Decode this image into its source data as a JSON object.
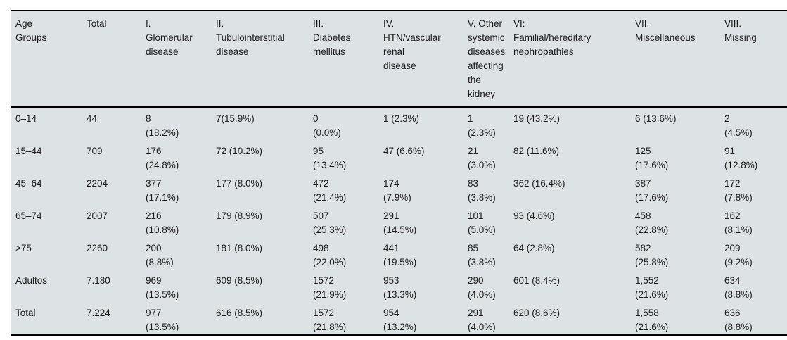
{
  "colors": {
    "table_background": "#dde2e5",
    "rule": "#000000",
    "text": "#1b1b1b"
  },
  "table": {
    "columns": [
      "Age\nGroups",
      "Total",
      "I.\nGlomerular\ndisease",
      "II.\nTubulointerstitial\ndisease",
      "III.\nDiabetes\nmellitus",
      "IV.\nHTN/vascular\nrenal\ndisease",
      "V. Other\nsystemic\ndiseases\naffecting\nthe\nkidney",
      "VI:\nFamilial/hereditary\nnephropathies",
      "VII.\nMiscellaneous",
      "VIII.\nMissing"
    ],
    "rows": [
      {
        "cells": [
          "0–14",
          "44",
          "8\n(18.2%)",
          "7(15.9%)",
          "0\n(0.0%)",
          "1 (2.3%)",
          "1\n(2.3%)",
          "19 (43.2%)",
          "6 (13.6%)",
          "2\n(4.5%)"
        ]
      },
      {
        "cells": [
          "15–44",
          "709",
          "176\n(24.8%)",
          "72 (10.2%)",
          "95\n(13.4%)",
          "47 (6.6%)",
          "21\n(3.0%)",
          "82 (11.6%)",
          "125\n(17.6%)",
          "91\n(12.8%)"
        ]
      },
      {
        "cells": [
          "45–64",
          "2204",
          "377\n(17.1%)",
          "177 (8.0%)",
          "472\n(21.4%)",
          "174\n(7.9%)",
          "83\n(3.8%)",
          "362 (16.4%)",
          "387\n(17.6%)",
          "172\n(7.8%)"
        ]
      },
      {
        "cells": [
          "65–74",
          "2007",
          "216\n(10.8%)",
          "179 (8.9%)",
          "507\n(25.3%)",
          "291\n(14.5%)",
          "101\n(5.0%)",
          "93 (4.6%)",
          "458\n(22.8%)",
          "162\n(8.1%)"
        ]
      },
      {
        "cells": [
          ">75",
          "2260",
          "200\n(8.8%)",
          "181 (8.0%)",
          "498\n(22.0%)",
          "441\n(19.5%)",
          "85\n(3.8%)",
          "64 (2.8%)",
          "582\n(25.8%)",
          "209\n(9.2%)"
        ]
      },
      {
        "cells": [
          "Adultos",
          "7.180",
          "969\n(13.5%)",
          "609 (8.5%)",
          "1572\n(21.9%)",
          "953\n(13.3%)",
          "290\n(4.0%)",
          "601 (8.4%)",
          "1,552\n(21.6%)",
          "634\n(8.8%)"
        ]
      },
      {
        "cells": [
          "Total",
          "7.224",
          "977\n(13.5%)",
          "616 (8.5%)",
          "1572\n(21.8%)",
          "954\n(13.2%)",
          "291\n(4.0%)",
          "620 (8.6%)",
          "1,558\n(21.6%)",
          "636\n(8.8%)"
        ]
      }
    ]
  }
}
